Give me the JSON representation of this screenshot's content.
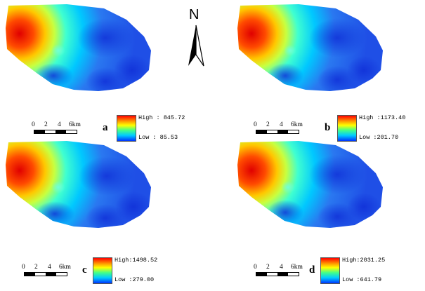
{
  "north_arrow": {
    "label": "N"
  },
  "scale_bar": {
    "ticks": [
      "0",
      "2",
      "4",
      "6km"
    ]
  },
  "colors": {
    "high": "#ff0000",
    "mid": "#ffff00",
    "low": "#0033ff"
  },
  "panels": [
    {
      "letter": "a",
      "high": "High : 845.72",
      "low": "Low : 85.53"
    },
    {
      "letter": "b",
      "high": "High :1173.40",
      "low": "Low :201.70"
    },
    {
      "letter": "c",
      "high": "High:1498.52",
      "low": "Low :279.00"
    },
    {
      "letter": "d",
      "high": "High:2031.25",
      "low": "Low :641.79"
    }
  ]
}
